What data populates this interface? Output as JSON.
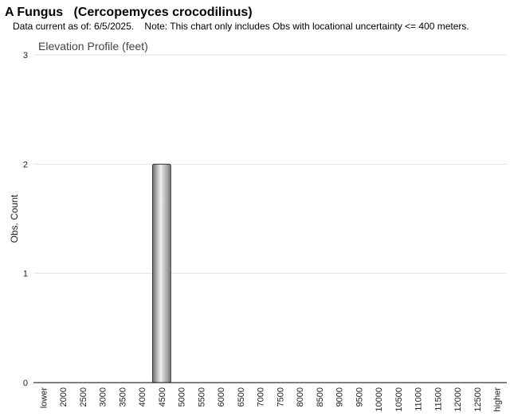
{
  "chart_data": {
    "type": "bar",
    "title": "A Fungus   (Cercopemyces crocodilinus)",
    "subtitle": "Data current as of: 6/5/2025.    Note: This chart only includes Obs with locational uncertainty <= 400 meters.",
    "chart_title": "Elevation Profile (feet)",
    "y_label": "Obs. Count",
    "categories": [
      "lower",
      "2000",
      "2500",
      "3000",
      "3500",
      "4000",
      "4500",
      "5000",
      "5500",
      "6000",
      "6500",
      "7000",
      "7500",
      "8000",
      "8500",
      "9000",
      "9500",
      "10000",
      "10500",
      "11000",
      "11500",
      "12000",
      "12500",
      "higher"
    ],
    "values": [
      0,
      0,
      0,
      0,
      0,
      0,
      2,
      0,
      0,
      0,
      0,
      0,
      0,
      0,
      0,
      0,
      0,
      0,
      0,
      0,
      0,
      0,
      0,
      0
    ],
    "color": "#a0a0a0",
    "ylim": [
      0,
      3
    ],
    "yticks": [
      0,
      1,
      2,
      3
    ],
    "grid": true
  }
}
